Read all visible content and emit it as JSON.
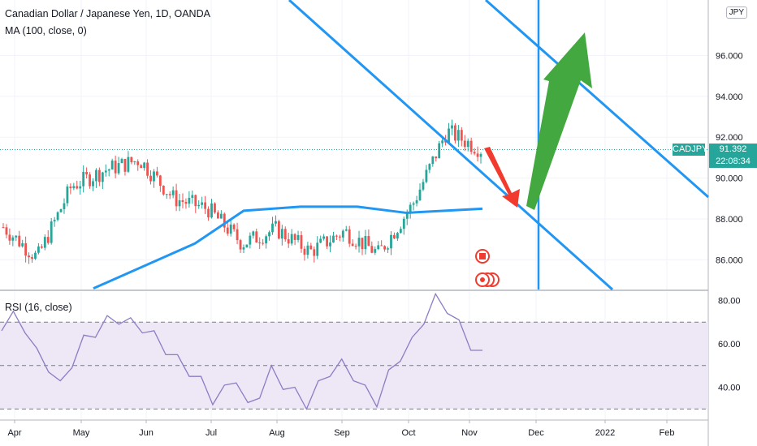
{
  "header": {
    "title": "Canadian Dollar / Japanese Yen, 1D, OANDA",
    "ma_label": "MA (100, close, 0)",
    "currency_badge": "JPY"
  },
  "rsi_panel": {
    "label": "RSI (16, close)"
  },
  "price_tag": {
    "symbol": "CADJPY",
    "price": "91.392",
    "countdown": "22:08:34"
  },
  "colors": {
    "up": "#26a69a",
    "down": "#ef5350",
    "ma": "#2196f3",
    "trendline": "#2196f3",
    "green_arrow": "#43a83f",
    "red_arrow": "#f23b2f",
    "rsi_line": "#8e7cc3",
    "rsi_band": "#ede7f6",
    "tag_bg": "#26a69a"
  },
  "chart_data": [
    {
      "type": "candlestick",
      "title": "Canadian Dollar / Japanese Yen, 1D, OANDA",
      "x_axis_labels": [
        "Apr",
        "May",
        "Jun",
        "Jul",
        "Aug",
        "Sep",
        "Oct",
        "Nov",
        "Dec",
        "2022",
        "Feb"
      ],
      "y_axis_labels": [
        "86.000",
        "88.000",
        "90.000",
        "92.000",
        "94.000",
        "96.000"
      ],
      "ylim": [
        84.7,
        98.5
      ],
      "current_price": 91.392,
      "close_series_approx": [
        {
          "x": "Apr",
          "close": 87.6
        },
        {
          "x": "Mid Apr",
          "close": 86.1
        },
        {
          "x": "May",
          "close": 89.6
        },
        {
          "x": "Mid May",
          "close": 90.4
        },
        {
          "x": "Jun",
          "close": 90.9
        },
        {
          "x": "Mid Jun",
          "close": 89.0
        },
        {
          "x": "Jul",
          "close": 88.5
        },
        {
          "x": "Mid Jul",
          "close": 86.8
        },
        {
          "x": "Aug",
          "close": 87.5
        },
        {
          "x": "Mid Aug",
          "close": 86.4
        },
        {
          "x": "Sep",
          "close": 87.4
        },
        {
          "x": "Mid Sep",
          "close": 86.3
        },
        {
          "x": "Oct",
          "close": 88.7
        },
        {
          "x": "Mid Oct",
          "close": 92.3
        },
        {
          "x": "Nov",
          "close": 91.4
        }
      ],
      "series": [
        {
          "name": "MA (100, close, 0)",
          "values": [
            84.6,
            86.8,
            88.4,
            88.6,
            88.6,
            88.3,
            88.5
          ]
        }
      ]
    },
    {
      "type": "line",
      "title": "RSI (16, close)",
      "y_axis_labels": [
        "40.00",
        "60.00",
        "80.00"
      ],
      "ylim": [
        25,
        82
      ],
      "bands": [
        30,
        50,
        70
      ],
      "values": [
        66,
        72,
        68,
        55,
        50,
        40,
        52,
        61,
        66,
        70,
        72,
        69,
        68,
        63,
        58,
        52,
        48,
        42,
        35,
        38,
        45,
        30,
        38,
        47,
        42,
        37,
        33,
        40,
        48,
        50,
        46,
        38,
        34,
        45,
        55,
        60,
        72,
        80,
        77,
        68,
        60,
        57
      ]
    }
  ]
}
